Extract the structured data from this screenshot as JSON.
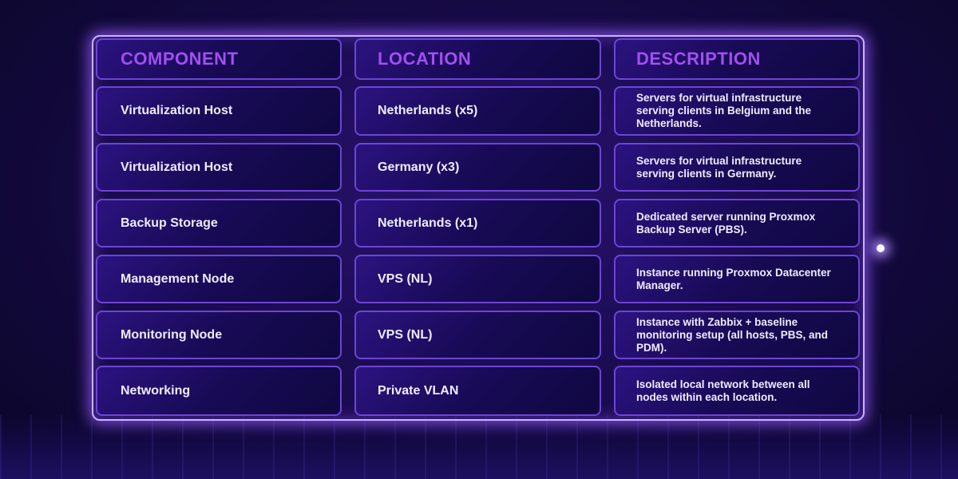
{
  "table": {
    "headers": [
      "COMPONENT",
      "LOCATION",
      "DESCRIPTION"
    ],
    "rows": [
      {
        "component": "Virtualization Host",
        "location": "Netherlands (x5)",
        "description": "Servers for virtual infrastructure serving clients in Belgium and the Netherlands."
      },
      {
        "component": "Virtualization Host",
        "location": "Germany (x3)",
        "description": "Servers for virtual infrastructure serving clients in Germany."
      },
      {
        "component": "Backup Storage",
        "location": "Netherlands (x1)",
        "description": "Dedicated server running Proxmox Backup Server (PBS)."
      },
      {
        "component": "Management Node",
        "location": "VPS (NL)",
        "description": "Instance running Proxmox Datacenter Manager."
      },
      {
        "component": "Monitoring Node",
        "location": "VPS (NL)",
        "description": "Instance with Zabbix + baseline monitoring setup (all hosts, PBS, and PDM)."
      },
      {
        "component": "Networking",
        "location": "Private VLAN",
        "description": "Isolated local network between all nodes within each location."
      }
    ]
  },
  "colors": {
    "header_text": "#a24ff0",
    "accent_border": "#6b45d6",
    "background": "#160a45"
  }
}
